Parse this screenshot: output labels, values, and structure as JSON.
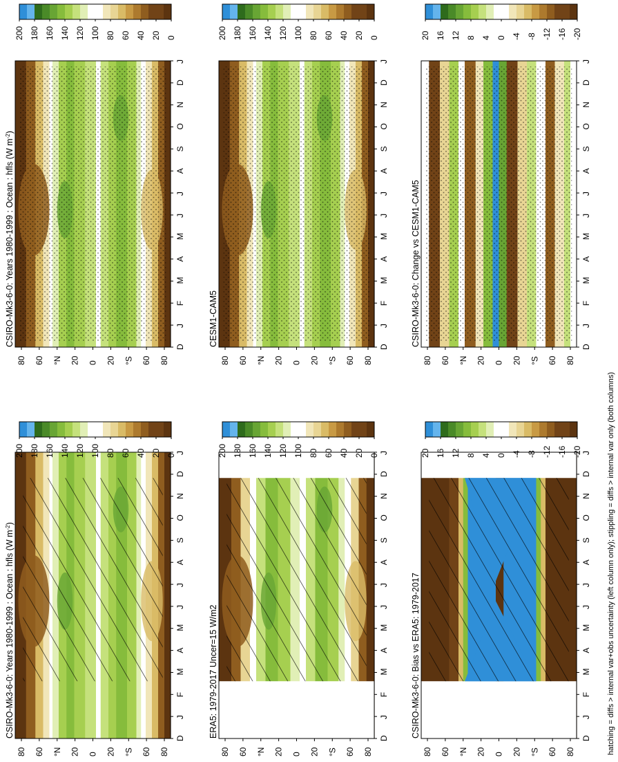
{
  "figure": {
    "footnote": "hatching = diffs > internal var+obs uncertainty (left column only); stippling = diffs > internal var only (both columns)"
  },
  "colors": {
    "blue": "#2f8fd8",
    "lightblue": "#64b4ec",
    "grn7": "#2e6b1c",
    "grn6": "#4a8a28",
    "grn5": "#68a534",
    "grn4": "#86bc3c",
    "grn3": "#a6cf50",
    "grn2": "#c5e17c",
    "grn1": "#e1efb6",
    "white": "#ffffff",
    "tan1": "#f1e6b9",
    "tan2": "#e8d594",
    "tan3": "#d9bb66",
    "tan4": "#c89a44",
    "brn1": "#ad7a2e",
    "brn2": "#8f5d1f",
    "brn3": "#714317",
    "brn4": "#5c3410"
  },
  "months": [
    "J",
    "F",
    "M",
    "A",
    "M",
    "J",
    "J",
    "A",
    "S",
    "O",
    "N",
    "D",
    "J"
  ],
  "colorbar_abs": [
    "200",
    "180",
    "160",
    "140",
    "120",
    "100",
    "80",
    "60",
    "40",
    "20",
    "0"
  ],
  "colorbar_diff": [
    "20",
    "16",
    "12",
    "8",
    "4",
    "0",
    "-4",
    "-8",
    "-12",
    "-16",
    "-20"
  ],
  "panels": [
    {
      "id": "p1",
      "title": "CSIRO-Mk3-6-0: Years 1980-1999 : Ocean : hfls (W m",
      "title_sup": "-2",
      "title_end": ")",
      "kind": "abs",
      "lat_labels": [
        "80",
        "60",
        "°N",
        "20",
        "0",
        "20",
        "°S",
        "60",
        "80"
      ],
      "month_labels": [
        "D",
        "J",
        "F",
        "M",
        "A",
        "M",
        "J",
        "J",
        "A",
        "S",
        "O",
        "N",
        "D",
        "J"
      ]
    },
    {
      "id": "p2",
      "title": "ERA5: 1979-2017 Uncer=15 W/m2",
      "title_sup": "",
      "title_end": "",
      "kind": "obs",
      "lat_labels": [
        "80",
        "60",
        "°N",
        "20",
        "0",
        "20",
        "°S",
        "60",
        "80"
      ],
      "month_labels": [
        "D",
        "J",
        "F",
        "M",
        "A",
        "M",
        "J",
        "J",
        "A",
        "S",
        "O",
        "N",
        "D",
        "J"
      ]
    },
    {
      "id": "p3",
      "title": "CSIRO-Mk3-6-0: Bias vs ERA5: 1979-2017",
      "title_sup": "",
      "title_end": "",
      "kind": "bias",
      "lat_labels": [
        "80",
        "60",
        "°N",
        "20",
        "0",
        "20",
        "°S",
        "60",
        "80"
      ],
      "month_labels": [
        "D",
        "J",
        "F",
        "M",
        "A",
        "M",
        "J",
        "J",
        "A",
        "S",
        "O",
        "N",
        "D",
        "J"
      ]
    },
    {
      "id": "p4",
      "title": "CSIRO-Mk3-6-0: Years 1980-1999 : Ocean : hfls (W m",
      "title_sup": "-2",
      "title_end": ")",
      "kind": "abs",
      "lat_labels": [
        "80",
        "60",
        "°N",
        "20",
        "0",
        "20",
        "°S",
        "60",
        "80"
      ],
      "month_labels": [
        "D",
        "J",
        "F",
        "M",
        "A",
        "M",
        "J",
        "J",
        "A",
        "S",
        "O",
        "N",
        "D",
        "J"
      ]
    },
    {
      "id": "p5",
      "title": "CESM1-CAM5",
      "title_sup": "",
      "title_end": "",
      "kind": "abs",
      "lat_labels": [
        "80",
        "60",
        "°N",
        "20",
        "0",
        "20",
        "°S",
        "60",
        "80"
      ],
      "month_labels": [
        "D",
        "J",
        "F",
        "M",
        "A",
        "M",
        "J",
        "J",
        "A",
        "S",
        "O",
        "N",
        "D",
        "J"
      ]
    },
    {
      "id": "p6",
      "title": "CSIRO-Mk3-6-0: Change vs CESM1-CAM5",
      "title_sup": "",
      "title_end": "",
      "kind": "change",
      "lat_labels": [
        "80",
        "60",
        "°N",
        "20",
        "0",
        "20",
        "°S",
        "60",
        "80"
      ],
      "month_labels": [
        "D",
        "J",
        "F",
        "M",
        "A",
        "M",
        "J",
        "J",
        "A",
        "S",
        "O",
        "N",
        "D",
        "J"
      ]
    }
  ],
  "chart_data": {
    "type": "heatmap",
    "description_axes": {
      "x": "month (D, J ... D, J)",
      "y": "latitude (80°S to 80°N)"
    },
    "panels": [
      {
        "title": "CSIRO-Mk3-6-0: Years 1980-1999 : Ocean : hfls (W m-2)",
        "colorbar": [
          200,
          180,
          160,
          140,
          120,
          100,
          80,
          60,
          40,
          20,
          0
        ]
      },
      {
        "title": "ERA5: 1979-2017 Uncer=15 W/m2",
        "colorbar": [
          200,
          180,
          160,
          140,
          120,
          100,
          80,
          60,
          40,
          20,
          0
        ]
      },
      {
        "title": "CSIRO-Mk3-6-0: Bias vs ERA5: 1979-2017",
        "colorbar": [
          20,
          16,
          12,
          8,
          4,
          0,
          -4,
          -8,
          -12,
          -16,
          -20
        ]
      },
      {
        "title": "CSIRO-Mk3-6-0: Years 1980-1999 : Ocean : hfls (W m-2)",
        "colorbar": [
          200,
          180,
          160,
          140,
          120,
          100,
          80,
          60,
          40,
          20,
          0
        ]
      },
      {
        "title": "CESM1-CAM5",
        "colorbar": [
          200,
          180,
          160,
          140,
          120,
          100,
          80,
          60,
          40,
          20,
          0
        ]
      },
      {
        "title": "CSIRO-Mk3-6-0: Change vs CESM1-CAM5",
        "colorbar": [
          20,
          16,
          12,
          8,
          4,
          0,
          -4,
          -8,
          -12,
          -16,
          -20
        ]
      }
    ]
  }
}
